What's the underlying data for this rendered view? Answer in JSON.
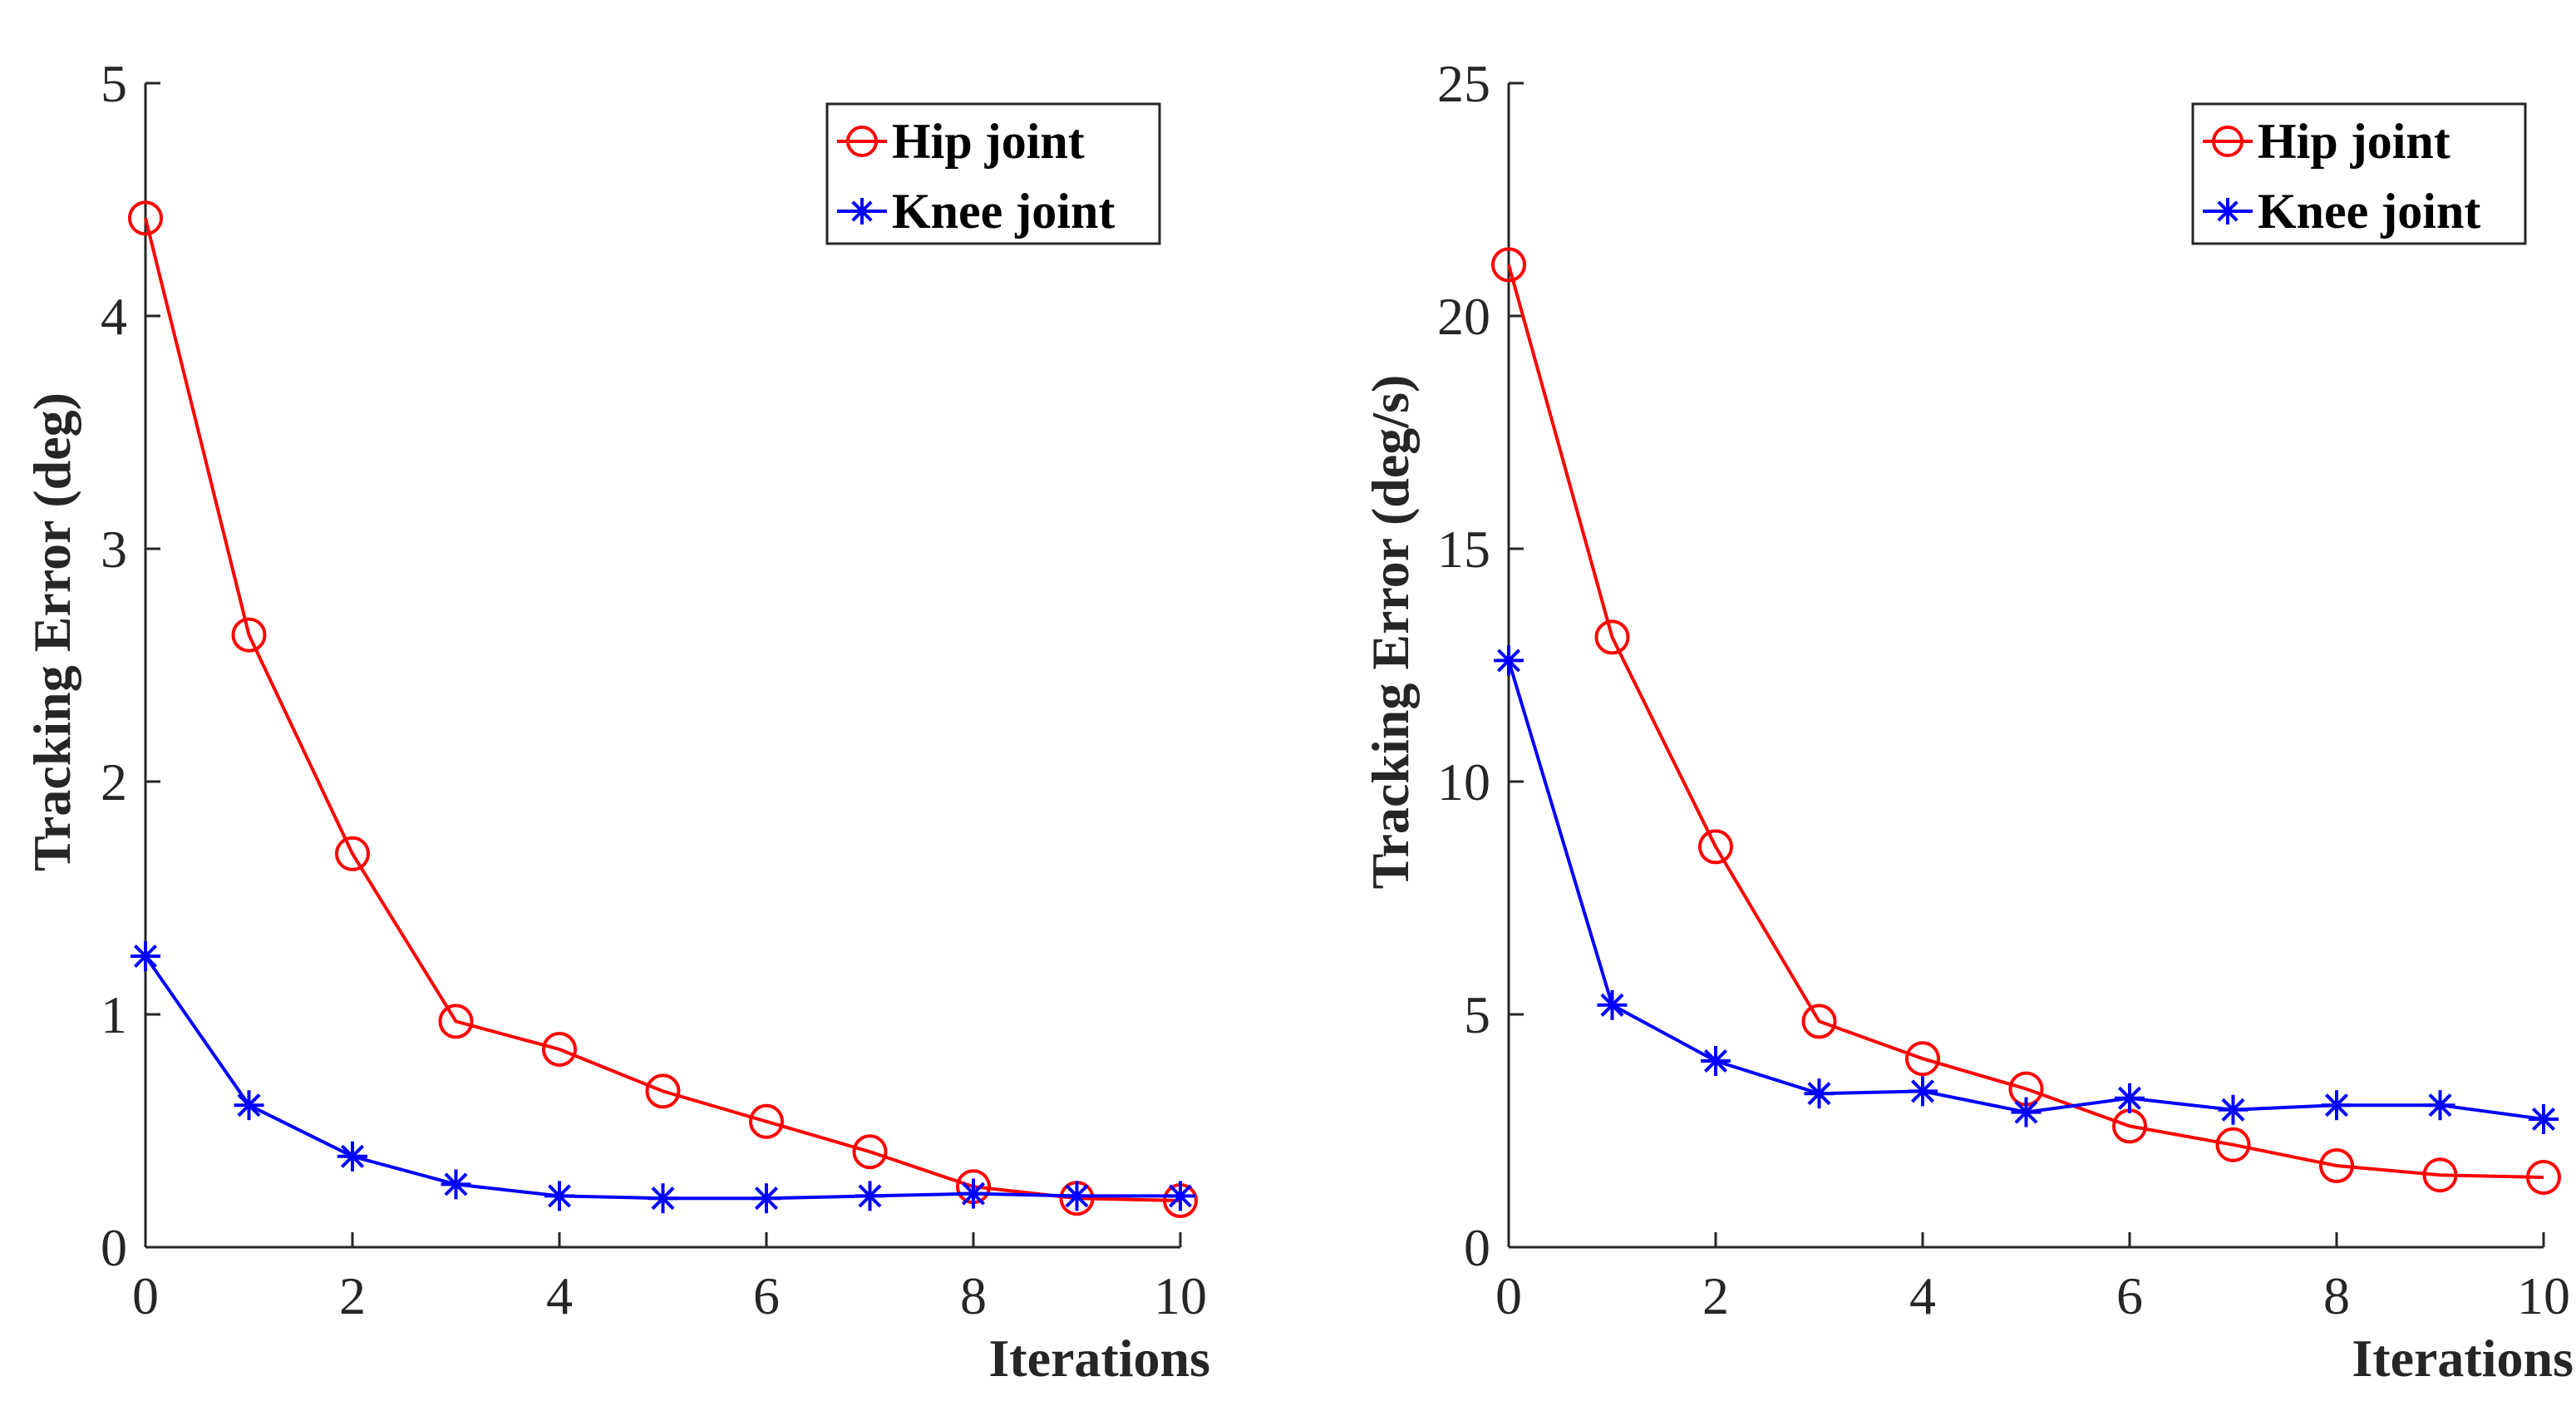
{
  "chart_data": [
    {
      "type": "line",
      "xlabel": "Iterations",
      "ylabel": "Tracking Error (deg)",
      "xlim": [
        0,
        10
      ],
      "ylim": [
        0,
        5
      ],
      "xticks": [
        0,
        2,
        4,
        6,
        8,
        10
      ],
      "yticks": [
        0,
        1,
        2,
        3,
        4,
        5
      ],
      "legend_position": "top-right",
      "x": [
        0,
        1,
        2,
        3,
        4,
        5,
        6,
        7,
        8,
        9,
        10
      ],
      "series": [
        {
          "name": "Hip joint",
          "color": "#ff0000",
          "marker": "circle",
          "values": [
            4.42,
            2.63,
            1.69,
            0.97,
            0.85,
            0.67,
            0.54,
            0.41,
            0.26,
            0.21,
            0.2
          ]
        },
        {
          "name": "Knee joint",
          "color": "#0000ff",
          "marker": "asterisk",
          "values": [
            1.25,
            0.61,
            0.39,
            0.27,
            0.22,
            0.21,
            0.21,
            0.22,
            0.23,
            0.22,
            0.22
          ]
        }
      ]
    },
    {
      "type": "line",
      "xlabel": "Iterations",
      "ylabel": "Tracking Error (deg/s)",
      "xlim": [
        0,
        10
      ],
      "ylim": [
        0,
        25
      ],
      "xticks": [
        0,
        2,
        4,
        6,
        8,
        10
      ],
      "yticks": [
        0,
        5,
        10,
        15,
        20,
        25
      ],
      "legend_position": "top-right",
      "x": [
        0,
        1,
        2,
        3,
        4,
        5,
        6,
        7,
        8,
        9,
        10
      ],
      "series": [
        {
          "name": "Hip joint",
          "color": "#ff0000",
          "marker": "circle",
          "values": [
            21.1,
            13.1,
            8.6,
            4.85,
            4.05,
            3.4,
            2.6,
            2.2,
            1.75,
            1.55,
            1.5
          ]
        },
        {
          "name": "Knee joint",
          "color": "#0000ff",
          "marker": "asterisk",
          "values": [
            12.6,
            5.2,
            4.0,
            3.3,
            3.35,
            2.9,
            3.2,
            2.95,
            3.05,
            3.05,
            2.75
          ]
        }
      ]
    }
  ]
}
